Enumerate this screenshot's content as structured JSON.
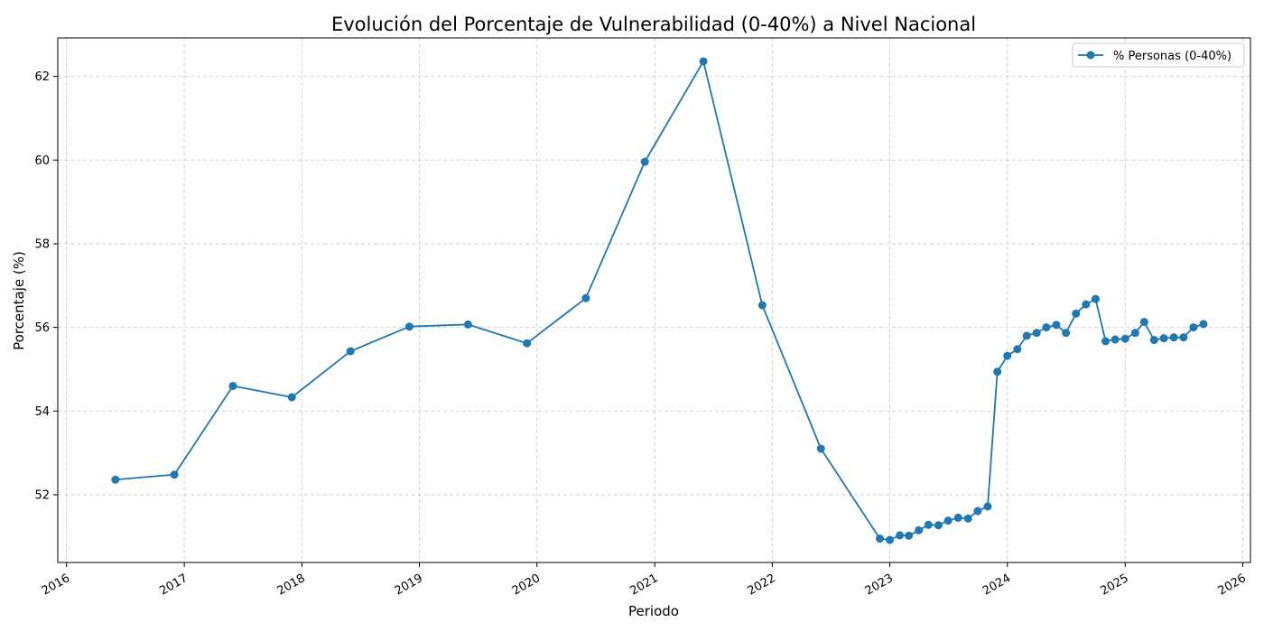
{
  "chart_data": {
    "type": "line",
    "title": "Evolución del Porcentaje de Vulnerabilidad (0-40%) a Nivel Nacional",
    "xlabel": "Periodo",
    "ylabel": "Porcentaje (%)",
    "x_axis_type": "date",
    "xlim": [
      "2015-12-05",
      "2026-01-25"
    ],
    "ylim": [
      50.38,
      62.92
    ],
    "x_ticks": [
      "2016",
      "2017",
      "2018",
      "2019",
      "2020",
      "2021",
      "2022",
      "2023",
      "2024",
      "2025",
      "2026"
    ],
    "y_ticks": [
      52,
      54,
      56,
      58,
      60,
      62
    ],
    "grid": true,
    "legend_position": "top-right",
    "series": [
      {
        "name": "% Personas (0-40%)",
        "color": "#1f77b4",
        "marker": "circle",
        "x": [
          "2016-06-01",
          "2016-12-01",
          "2017-06-01",
          "2017-12-01",
          "2018-06-01",
          "2018-12-01",
          "2019-06-01",
          "2019-12-01",
          "2020-06-01",
          "2020-12-01",
          "2021-06-01",
          "2021-12-01",
          "2022-06-01",
          "2022-12-01",
          "2023-01-01",
          "2023-02-01",
          "2023-03-01",
          "2023-04-01",
          "2023-05-01",
          "2023-06-01",
          "2023-07-01",
          "2023-08-01",
          "2023-09-01",
          "2023-10-01",
          "2023-11-01",
          "2023-12-01",
          "2024-01-01",
          "2024-02-01",
          "2024-03-01",
          "2024-04-01",
          "2024-05-01",
          "2024-06-01",
          "2024-07-01",
          "2024-08-01",
          "2024-09-01",
          "2024-10-01",
          "2024-11-01",
          "2024-12-01",
          "2025-01-01",
          "2025-02-01",
          "2025-03-01",
          "2025-04-01",
          "2025-05-01",
          "2025-06-01",
          "2025-07-01",
          "2025-08-01",
          "2025-09-01"
        ],
        "y": [
          52.36,
          52.48,
          54.6,
          54.33,
          55.43,
          56.02,
          56.07,
          55.62,
          56.7,
          59.96,
          62.36,
          56.53,
          53.1,
          50.95,
          50.92,
          51.03,
          51.02,
          51.15,
          51.28,
          51.27,
          51.38,
          51.45,
          51.43,
          51.61,
          51.72,
          54.94,
          55.32,
          55.48,
          55.8,
          55.87,
          56.0,
          56.06,
          55.87,
          56.33,
          56.55,
          56.68,
          55.67,
          55.71,
          55.73,
          55.87,
          56.13,
          55.7,
          55.74,
          55.76,
          55.76,
          56.0,
          56.08
        ]
      }
    ]
  }
}
